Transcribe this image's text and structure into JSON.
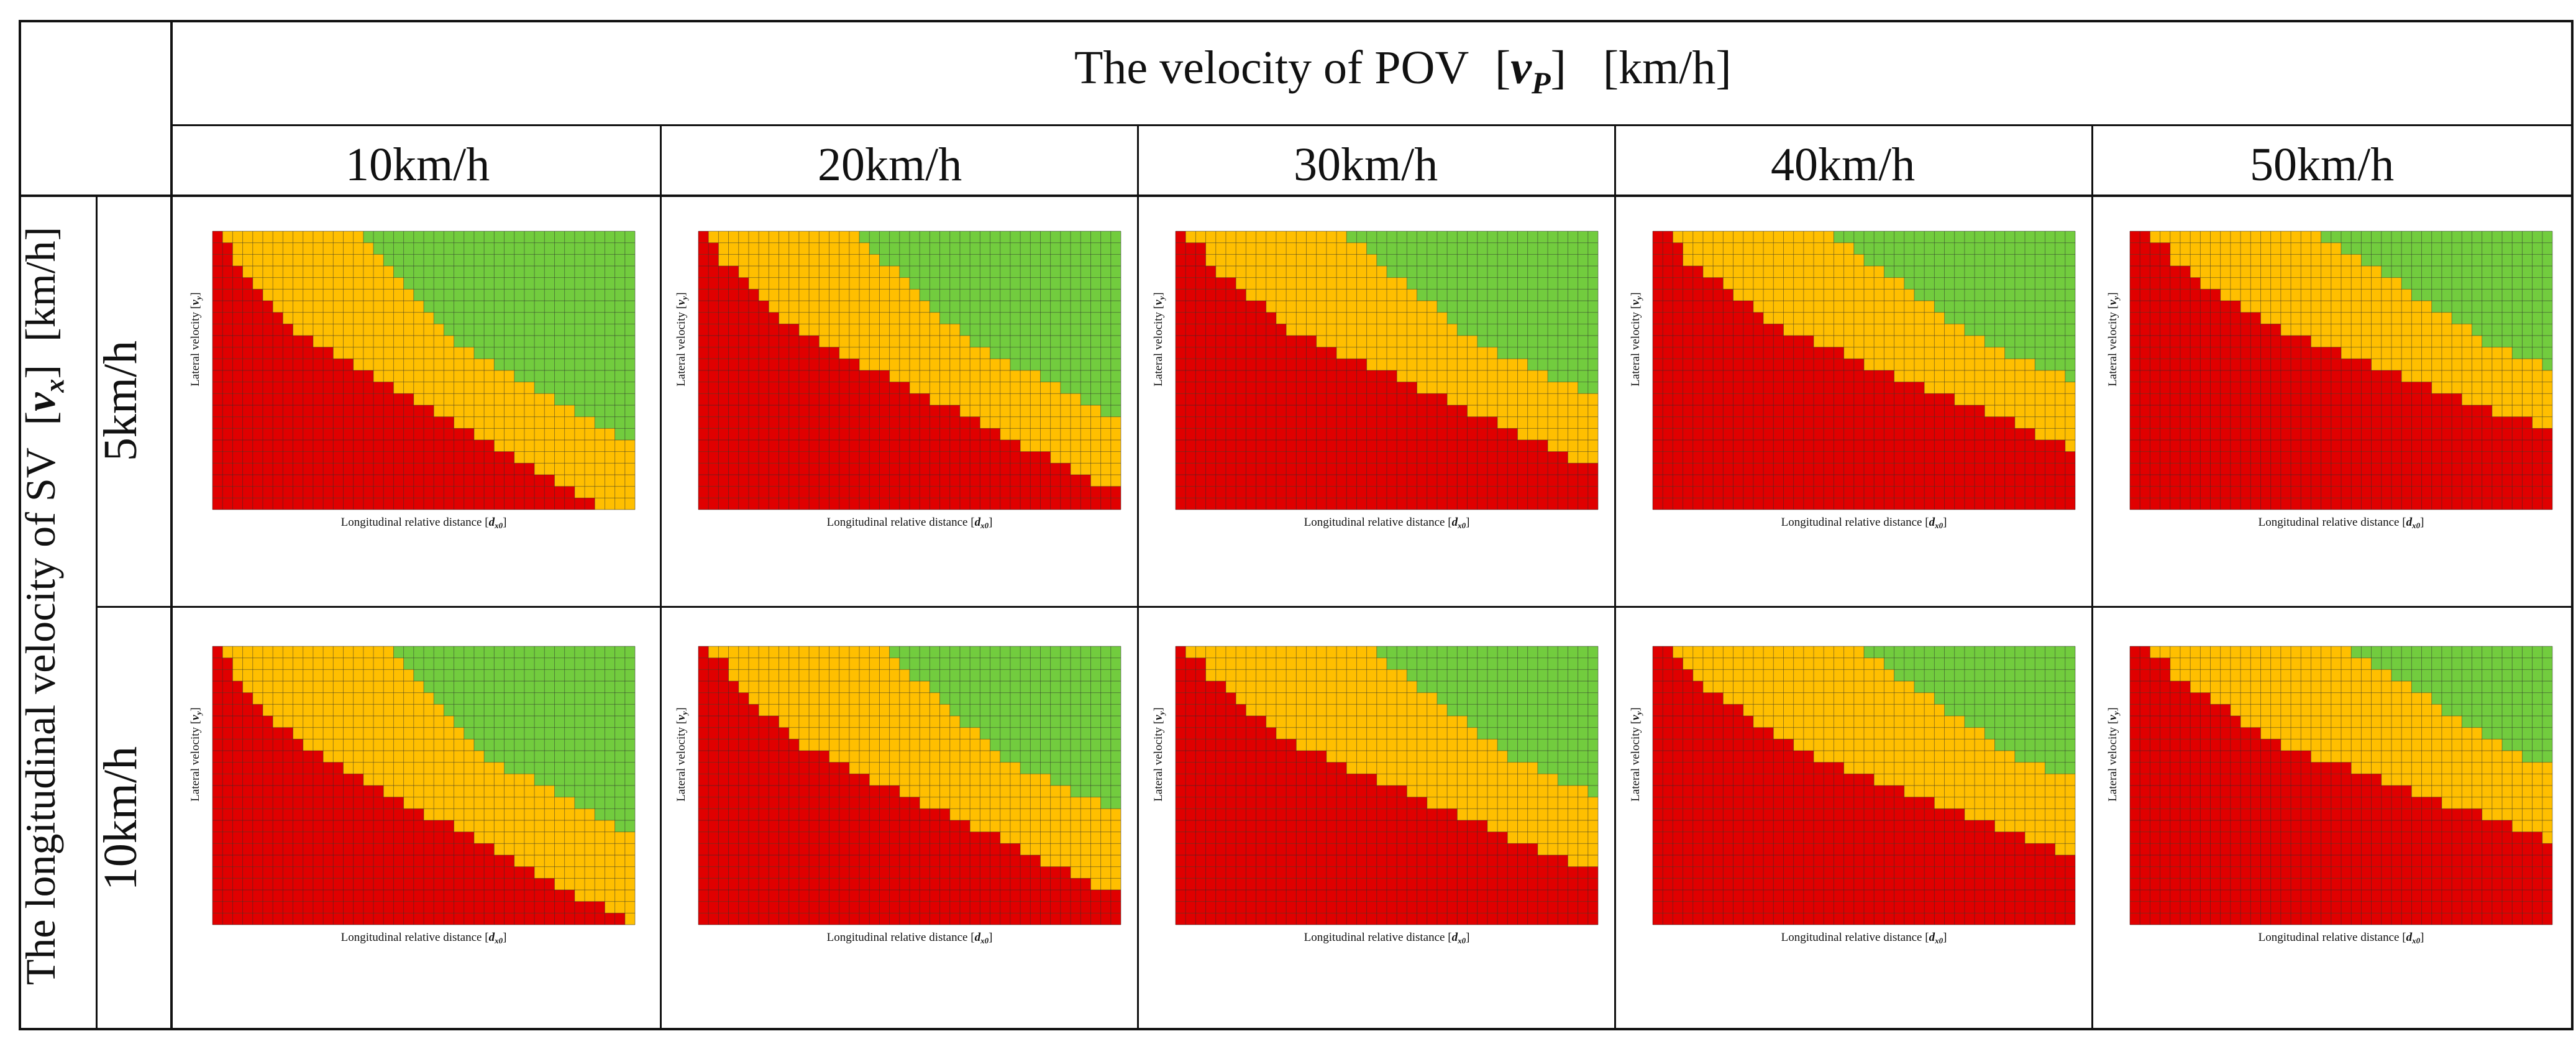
{
  "table": {
    "top_header": {
      "prefix": "The velocity of POV",
      "var_open": "[",
      "var": "v",
      "var_sub": "P",
      "var_close": "]",
      "unit": "[km/h]"
    },
    "column_labels": [
      "10km/h",
      "20km/h",
      "30km/h",
      "40km/h",
      "50km/h"
    ],
    "side_header": {
      "prefix": "The longitudinal velocity of SV",
      "var_open": "[",
      "var": "v",
      "var_sub": "x",
      "var_close": "]",
      "unit": "[km/h]"
    },
    "row_labels": [
      "5km/h",
      "10km/h"
    ]
  },
  "colors": {
    "red": "#e00000",
    "orange": "#ffbf00",
    "green": "#72cc3e",
    "cell_line": "#2b2b2b",
    "table_line": "#111111"
  },
  "chart_data": [
    {
      "type": "heatmap",
      "row_label": "5km/h",
      "column_label": "10km/h",
      "xlabel": "Longitudinal relative distance [d_x0]",
      "xlabel_main": "Longitudinal relative distance ",
      "xlabel_var": "d",
      "xlabel_sub": "x0",
      "ylabel": "Lateral velocity [v_y]",
      "ylabel_main": "Lateral velocity ",
      "ylabel_var": "v",
      "ylabel_sub": "y",
      "grid": [
        42,
        24
      ],
      "legend": [
        "red",
        "orange",
        "green"
      ],
      "red_boundary": [
        1,
        2,
        2,
        3,
        4,
        5,
        6,
        7,
        8,
        10,
        12,
        14,
        16,
        18,
        20,
        22,
        24,
        26,
        28,
        30,
        32,
        34,
        36,
        38
      ],
      "orange_boundary": [
        15,
        16,
        17,
        18,
        19,
        20,
        21,
        22,
        23,
        24,
        26,
        28,
        30,
        32,
        34,
        36,
        38,
        40,
        42,
        42,
        42,
        42,
        42,
        42
      ]
    }
  ]
}
